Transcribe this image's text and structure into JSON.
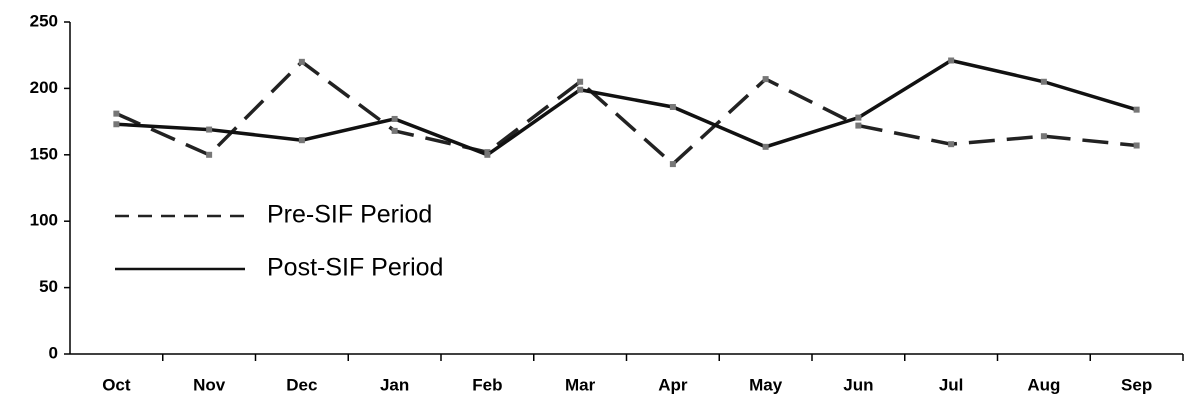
{
  "chart_data": {
    "type": "line",
    "categories": [
      "Oct",
      "Nov",
      "Dec",
      "Jan",
      "Feb",
      "Mar",
      "Apr",
      "May",
      "Jun",
      "Jul",
      "Aug",
      "Sep"
    ],
    "series": [
      {
        "name": "Pre-SIF Period",
        "color": "#222222",
        "dash": true,
        "values": [
          181,
          150,
          220,
          168,
          152,
          205,
          143,
          207,
          172,
          158,
          164,
          157
        ]
      },
      {
        "name": "Post-SIF Period",
        "color": "#111111",
        "dash": false,
        "values": [
          173,
          169,
          161,
          177,
          150,
          199,
          186,
          156,
          178,
          221,
          205,
          184
        ]
      }
    ],
    "ylim": [
      0,
      250
    ],
    "yticks": [
      0,
      50,
      100,
      150,
      200,
      250
    ],
    "grid": false,
    "legend": "left"
  }
}
